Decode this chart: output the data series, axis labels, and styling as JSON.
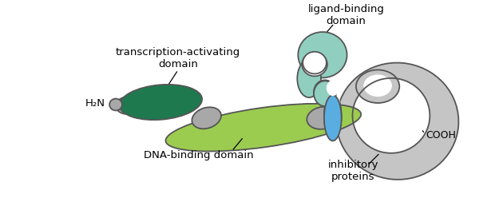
{
  "background_color": "#ffffff",
  "colors": {
    "dark_green": "#1e7a4e",
    "light_green": "#9bcc50",
    "light_teal": "#90cfc0",
    "blue": "#5aade0",
    "gray": "#a8a8a8",
    "light_gray": "#c5c5c5",
    "outline": "#555555",
    "white": "#ffffff"
  },
  "labels": {
    "h2n": "H₂N",
    "cooh": "COOH",
    "transcription": "transcription-activating\ndomain",
    "dna_binding": "DNA-binding domain",
    "ligand_binding": "ligand-binding\ndomain",
    "inhibitory": "inhibitory\nproteins"
  },
  "figsize": [
    6.3,
    2.48
  ],
  "dpi": 100
}
